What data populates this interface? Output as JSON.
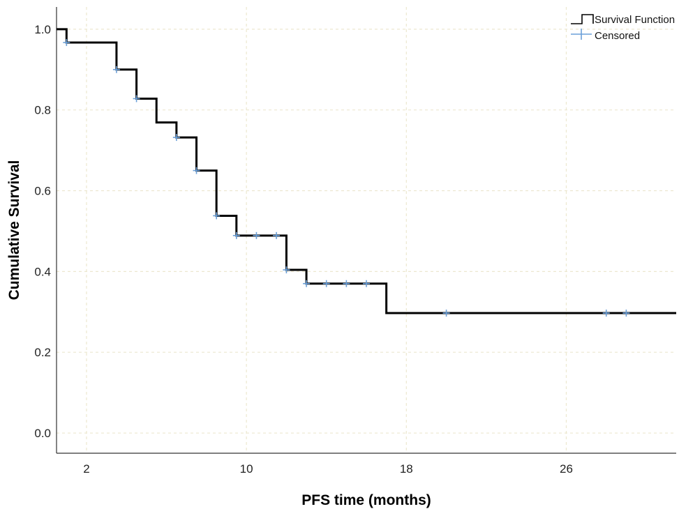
{
  "chart_data": {
    "type": "line",
    "xlabel": "PFS time (months)",
    "ylabel": "Cumulative Survival",
    "xlim": [
      0.5,
      31.5
    ],
    "ylim": [
      -0.05,
      1.055
    ],
    "x_ticks": [
      2,
      10,
      18,
      26
    ],
    "y_ticks": [
      0.0,
      0.2,
      0.4,
      0.6,
      0.8,
      1.0
    ],
    "y_tick_labels": [
      "0.0",
      "0.2",
      "0.4",
      "0.6",
      "0.8",
      "1.0"
    ],
    "grid": true,
    "legend_position": "top-right",
    "legend": {
      "survival_label": "Survival Function",
      "censored_label": "Censored"
    },
    "series": [
      {
        "name": "Survival Function",
        "kind": "step",
        "x": [
          0.5,
          1.0,
          3.5,
          4.5,
          5.5,
          6.5,
          7.5,
          8.5,
          9.5,
          12.0,
          13.0,
          17.0,
          31.5
        ],
        "y": [
          1.0,
          0.967,
          0.9,
          0.828,
          0.769,
          0.732,
          0.65,
          0.538,
          0.489,
          0.404,
          0.37,
          0.297,
          0.297
        ]
      },
      {
        "name": "Censored",
        "kind": "markers",
        "x": [
          1.0,
          3.5,
          4.5,
          6.5,
          7.5,
          8.5,
          9.5,
          10.5,
          11.5,
          12.0,
          13.0,
          14.0,
          15.0,
          16.0,
          20.0,
          28.0,
          29.0
        ],
        "y": [
          0.967,
          0.9,
          0.828,
          0.732,
          0.65,
          0.538,
          0.489,
          0.489,
          0.489,
          0.404,
          0.37,
          0.37,
          0.37,
          0.37,
          0.297,
          0.297,
          0.297
        ]
      }
    ],
    "colors": {
      "survival_line": "#000000",
      "censored_marker": "#6a9fd8",
      "grid": "#ece7cf",
      "axis": "#333333"
    }
  }
}
